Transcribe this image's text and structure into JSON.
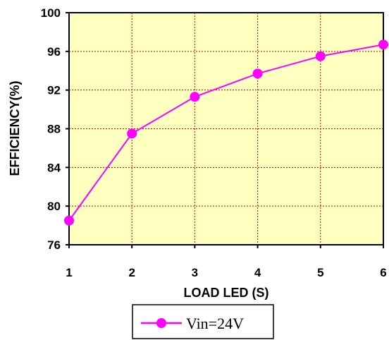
{
  "chart_data": {
    "type": "line",
    "title": "",
    "xlabel": "LOAD LED (S)",
    "ylabel": "EFFICIENCY(%)",
    "x": [
      1,
      2,
      3,
      4,
      5,
      6
    ],
    "xlim": [
      1,
      6
    ],
    "ylim": [
      76,
      100
    ],
    "yticks": [
      76,
      80,
      84,
      88,
      92,
      96,
      100
    ],
    "xticks": [
      1,
      2,
      3,
      4,
      5,
      6
    ],
    "grid": true,
    "legend_position": "bottom",
    "series": [
      {
        "name": "Vin=24V",
        "values": [
          78.5,
          87.5,
          91.3,
          93.7,
          95.5,
          96.7
        ],
        "color": "#ff00ff",
        "marker": "circle"
      }
    ],
    "colors": {
      "plot_background": "#ffffc0",
      "grid": "#cc0000",
      "axis": "#000000"
    }
  }
}
